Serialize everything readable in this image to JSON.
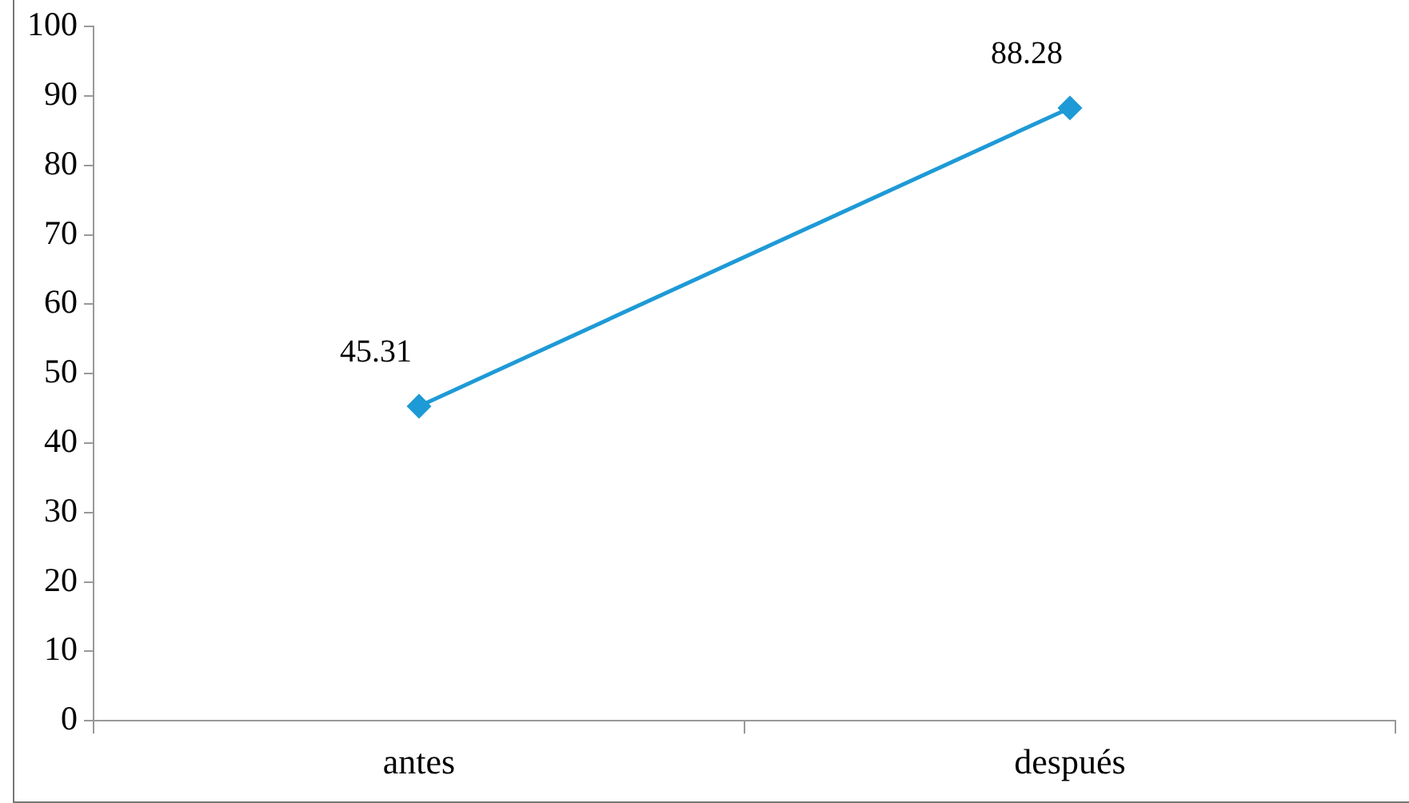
{
  "chart_data": {
    "type": "line",
    "categories": [
      "antes",
      "después"
    ],
    "series": [
      {
        "color": "#1e9ad6",
        "values": [
          45.31,
          88.28
        ]
      }
    ],
    "ylim": [
      0,
      100
    ],
    "yticks": [
      0,
      10,
      20,
      30,
      40,
      50,
      60,
      70,
      80,
      90,
      100
    ],
    "grid": false,
    "legend": false,
    "marker": "diamond",
    "line_style": "solid",
    "data_labels": true
  }
}
